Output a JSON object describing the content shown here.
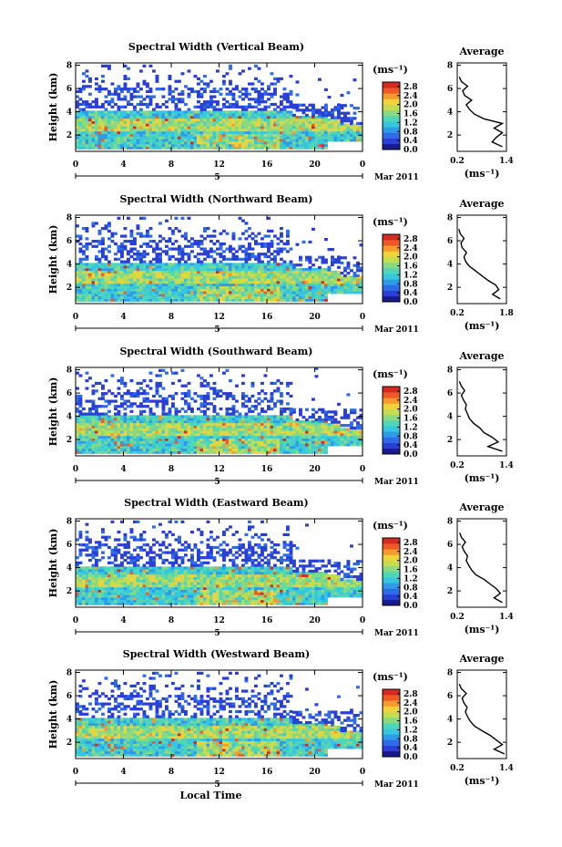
{
  "figure": {
    "xlabel": "Local Time",
    "day_label": "5",
    "month_label": "Mar 2011",
    "colorbar_unit": "(ms⁻¹)",
    "avg_unit": "(ms⁻¹)",
    "avg_title": "Average",
    "ylabel": "Height (km)"
  },
  "colormap": [
    "#1a1a8c",
    "#2a3fd6",
    "#2e6be8",
    "#2f9be8",
    "#35c6e0",
    "#4fd6b8",
    "#8ad980",
    "#c6dc50",
    "#f0d23a",
    "#f59b2e",
    "#ee5a26",
    "#d42a1f"
  ],
  "chart_data": [
    {
      "type": "heatmap",
      "title": "Spectral Width (Vertical Beam)",
      "ylabel": "Height (km)",
      "xlabel": "",
      "x_ticks": [
        "0",
        "4",
        "8",
        "12",
        "16",
        "20",
        "0"
      ],
      "y_ticks": [
        "2",
        "4",
        "6",
        "8"
      ],
      "xlim": [
        0,
        24
      ],
      "ylim": [
        0.6,
        8.2
      ],
      "colorbar": {
        "ticks": [
          "0.0",
          "0.4",
          "0.8",
          "1.2",
          "1.6",
          "2.0",
          "2.4",
          "2.8"
        ],
        "range": [
          0.0,
          3.0
        ]
      },
      "avg_profile": {
        "title": "Average",
        "xlabel": "(ms⁻¹)",
        "x_ticks": [
          "0.2",
          "1.4"
        ],
        "xlim": [
          0.2,
          1.4
        ],
        "y_ticks": [
          "2",
          "4",
          "6",
          "8"
        ],
        "ylim": [
          0.6,
          8.2
        ],
        "height": [
          1.0,
          1.4,
          1.8,
          2.2,
          2.6,
          3.0,
          3.4,
          3.8,
          4.2,
          4.6,
          5.0,
          5.4,
          5.8,
          6.2,
          6.6,
          7.0
        ],
        "width": [
          1.3,
          1.05,
          1.15,
          1.3,
          1.1,
          1.3,
          0.85,
          0.62,
          0.5,
          0.42,
          0.55,
          0.38,
          0.33,
          0.45,
          0.3,
          0.25
        ]
      }
    },
    {
      "type": "heatmap",
      "title": "Spectral Width (Northward Beam)",
      "ylabel": "Height (km)",
      "xlabel": "",
      "x_ticks": [
        "0",
        "4",
        "8",
        "12",
        "16",
        "20",
        "0"
      ],
      "y_ticks": [
        "2",
        "4",
        "6",
        "8"
      ],
      "xlim": [
        0,
        24
      ],
      "ylim": [
        0.6,
        8.2
      ],
      "colorbar": {
        "ticks": [
          "0.0",
          "0.4",
          "0.8",
          "1.2",
          "1.6",
          "2.0",
          "2.4",
          "2.8"
        ],
        "range": [
          0.0,
          3.0
        ]
      },
      "avg_profile": {
        "title": "Average",
        "xlabel": "(ms⁻¹)",
        "x_ticks": [
          "0.2",
          "1.8"
        ],
        "xlim": [
          0.2,
          1.8
        ],
        "y_ticks": [
          "2",
          "4",
          "6",
          "8"
        ],
        "ylim": [
          0.6,
          8.2
        ],
        "height": [
          1.0,
          1.4,
          1.8,
          2.2,
          2.6,
          3.0,
          3.4,
          3.8,
          4.2,
          4.6,
          5.0,
          5.4,
          5.8,
          6.2,
          6.6,
          7.0
        ],
        "width": [
          1.6,
          1.35,
          1.55,
          1.45,
          1.2,
          1.0,
          0.8,
          0.6,
          0.48,
          0.42,
          0.5,
          0.36,
          0.32,
          0.42,
          0.3,
          0.25
        ]
      }
    },
    {
      "type": "heatmap",
      "title": "Spectral Width (Southward Beam)",
      "ylabel": "Height (km)",
      "xlabel": "",
      "x_ticks": [
        "0",
        "4",
        "8",
        "12",
        "16",
        "20",
        "0"
      ],
      "y_ticks": [
        "2",
        "4",
        "6",
        "8"
      ],
      "xlim": [
        0,
        24
      ],
      "ylim": [
        0.6,
        8.2
      ],
      "colorbar": {
        "ticks": [
          "0.0",
          "0.4",
          "0.8",
          "1.2",
          "1.6",
          "2.0",
          "2.4",
          "2.8"
        ],
        "range": [
          0.0,
          3.0
        ]
      },
      "avg_profile": {
        "title": "Average",
        "xlabel": "(ms⁻¹)",
        "x_ticks": [
          "0.2",
          "1.4"
        ],
        "xlim": [
          0.2,
          1.4
        ],
        "y_ticks": [
          "2",
          "4",
          "6",
          "8"
        ],
        "ylim": [
          0.6,
          8.2
        ],
        "height": [
          1.0,
          1.4,
          1.8,
          2.2,
          2.6,
          3.0,
          3.4,
          3.8,
          4.2,
          4.6,
          5.0,
          5.4,
          5.8,
          6.2,
          6.6,
          7.0
        ],
        "width": [
          1.3,
          0.95,
          1.2,
          1.05,
          0.85,
          0.75,
          0.6,
          0.5,
          0.45,
          0.4,
          0.42,
          0.35,
          0.3,
          0.38,
          0.3,
          0.25
        ]
      }
    },
    {
      "type": "heatmap",
      "title": "Spectral Width (Eastward Beam)",
      "ylabel": "Height (km)",
      "xlabel": "",
      "x_ticks": [
        "0",
        "4",
        "8",
        "12",
        "16",
        "20",
        "0"
      ],
      "y_ticks": [
        "2",
        "4",
        "6",
        "8"
      ],
      "xlim": [
        0,
        24
      ],
      "ylim": [
        0.6,
        8.2
      ],
      "colorbar": {
        "ticks": [
          "0.0",
          "0.4",
          "0.8",
          "1.2",
          "1.6",
          "2.0",
          "2.4",
          "2.8"
        ],
        "range": [
          0.0,
          3.0
        ]
      },
      "avg_profile": {
        "title": "Average",
        "xlabel": "(ms⁻¹)",
        "x_ticks": [
          "0.2",
          "1.4"
        ],
        "xlim": [
          0.2,
          1.4
        ],
        "y_ticks": [
          "2",
          "4",
          "6",
          "8"
        ],
        "ylim": [
          0.6,
          8.2
        ],
        "height": [
          1.0,
          1.4,
          1.8,
          2.2,
          2.6,
          3.0,
          3.4,
          3.8,
          4.2,
          4.6,
          5.0,
          5.4,
          5.8,
          6.2,
          6.6,
          7.0
        ],
        "width": [
          1.3,
          1.1,
          1.25,
          1.15,
          1.0,
          0.85,
          0.65,
          0.55,
          0.48,
          0.42,
          0.45,
          0.37,
          0.32,
          0.4,
          0.3,
          0.26
        ]
      }
    },
    {
      "type": "heatmap",
      "title": "Spectral Width (Westward Beam)",
      "ylabel": "Height (km)",
      "xlabel": "Local Time",
      "x_ticks": [
        "0",
        "4",
        "8",
        "12",
        "16",
        "20",
        "0"
      ],
      "y_ticks": [
        "2",
        "4",
        "6",
        "8"
      ],
      "xlim": [
        0,
        24
      ],
      "ylim": [
        0.6,
        8.2
      ],
      "colorbar": {
        "ticks": [
          "0.0",
          "0.4",
          "0.8",
          "1.2",
          "1.6",
          "2.0",
          "2.4",
          "2.8"
        ],
        "range": [
          0.0,
          3.0
        ]
      },
      "avg_profile": {
        "title": "Average",
        "xlabel": "(ms⁻¹)",
        "x_ticks": [
          "0.2",
          "1.4"
        ],
        "xlim": [
          0.2,
          1.4
        ],
        "y_ticks": [
          "2",
          "4",
          "6",
          "8"
        ],
        "ylim": [
          0.6,
          8.2
        ],
        "height": [
          1.0,
          1.4,
          1.8,
          2.2,
          2.6,
          3.0,
          3.4,
          3.8,
          4.2,
          4.6,
          5.0,
          5.4,
          5.8,
          6.2,
          6.6,
          7.0
        ],
        "width": [
          1.35,
          1.1,
          1.3,
          1.15,
          1.0,
          0.8,
          0.62,
          0.52,
          0.45,
          0.4,
          0.44,
          0.36,
          0.32,
          0.42,
          0.3,
          0.25
        ]
      }
    }
  ]
}
